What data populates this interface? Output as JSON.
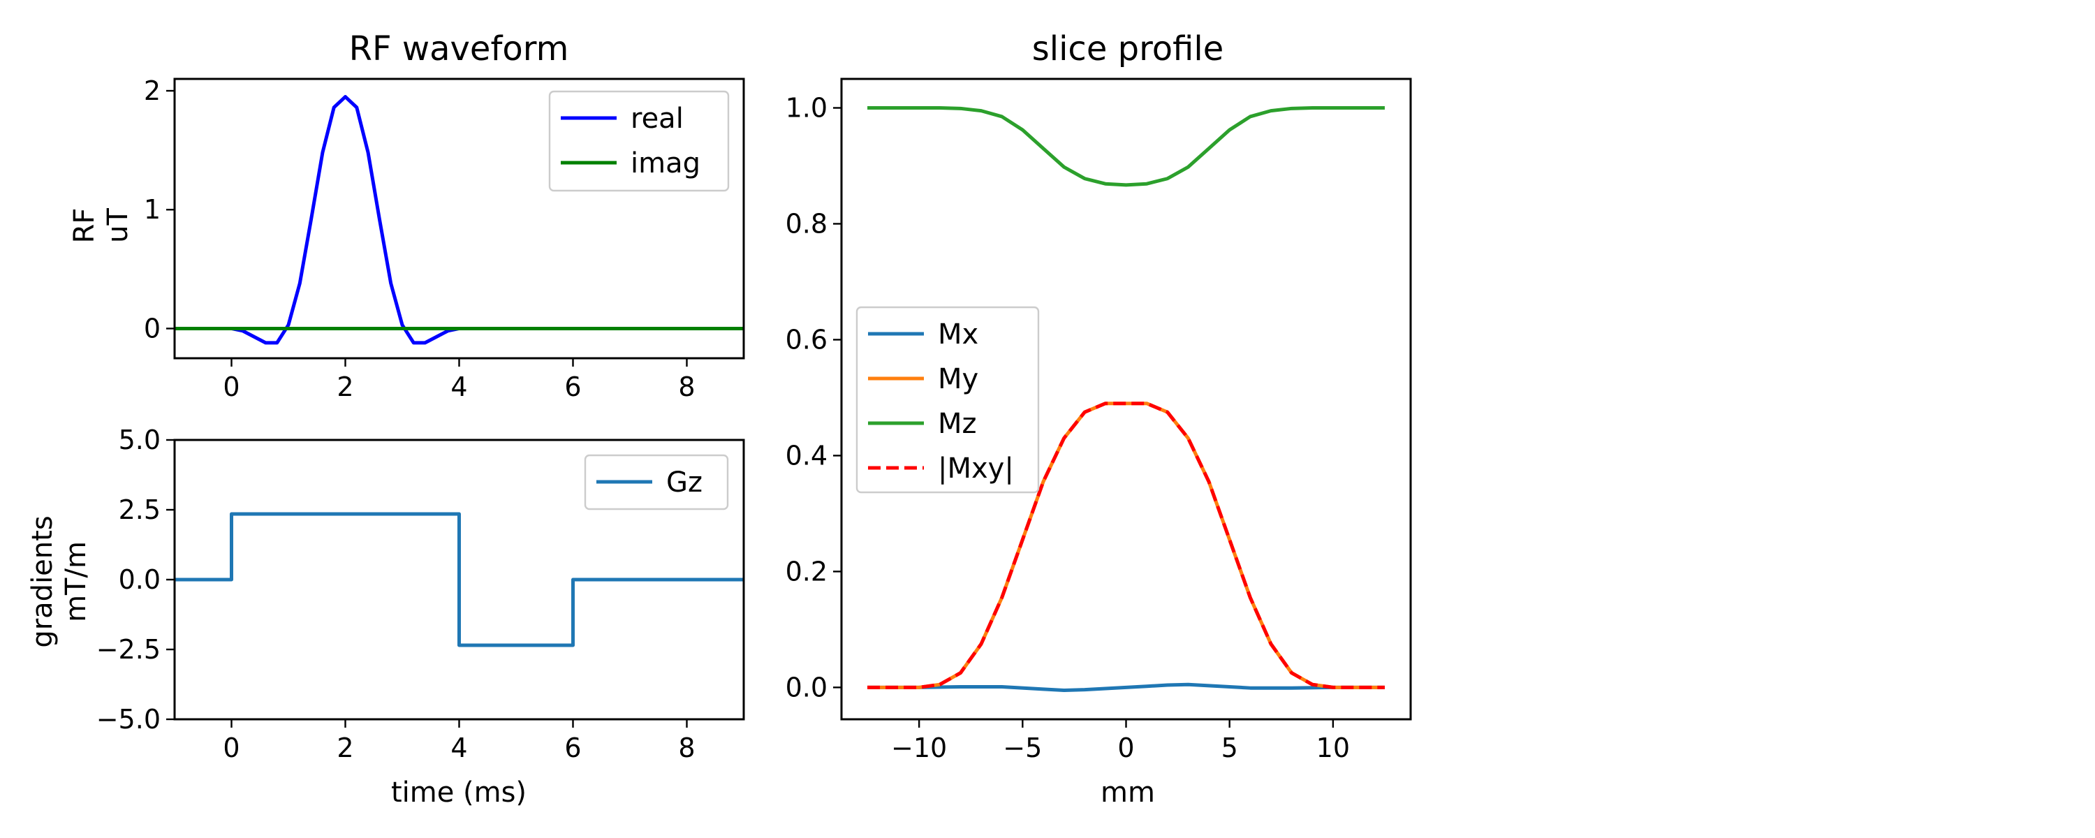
{
  "chart_data": [
    {
      "id": "rf",
      "type": "line",
      "title": "RF waveform",
      "xlabel": "",
      "ylabel": [
        "RF",
        "uT"
      ],
      "xlim": [
        -1,
        9
      ],
      "ylim": [
        -0.25,
        2.1
      ],
      "xticks": [
        0,
        2,
        4,
        6,
        8
      ],
      "xtick_labels": [
        "0",
        "2",
        "4",
        "6",
        "8"
      ],
      "yticks": [
        0,
        1,
        2
      ],
      "ytick_labels": [
        "0",
        "1",
        "2"
      ],
      "legend_position": "top-right",
      "series": [
        {
          "name": "real",
          "color": "#0000ff",
          "dash": "solid",
          "x": [
            -1,
            0,
            0.2,
            0.4,
            0.6,
            0.8,
            1.0,
            1.2,
            1.4,
            1.6,
            1.8,
            2.0,
            2.2,
            2.4,
            2.6,
            2.8,
            3.0,
            3.2,
            3.4,
            3.6,
            3.8,
            4.0,
            9
          ],
          "y": [
            0,
            0,
            -0.02,
            -0.07,
            -0.12,
            -0.12,
            0.03,
            0.38,
            0.92,
            1.48,
            1.86,
            1.95,
            1.86,
            1.48,
            0.92,
            0.38,
            0.03,
            -0.12,
            -0.12,
            -0.07,
            -0.02,
            0,
            0
          ]
        },
        {
          "name": "imag",
          "color": "#008000",
          "dash": "solid",
          "x": [
            -1,
            9
          ],
          "y": [
            0,
            0
          ]
        }
      ]
    },
    {
      "id": "grad",
      "type": "line",
      "title": "",
      "xlabel": "time (ms)",
      "ylabel": [
        "gradients",
        "mT/m"
      ],
      "xlim": [
        -1,
        9
      ],
      "ylim": [
        -5.0,
        5.0
      ],
      "xticks": [
        0,
        2,
        4,
        6,
        8
      ],
      "xtick_labels": [
        "0",
        "2",
        "4",
        "6",
        "8"
      ],
      "yticks": [
        -5.0,
        -2.5,
        0.0,
        2.5,
        5.0
      ],
      "ytick_labels": [
        "−5.0",
        "−2.5",
        "0.0",
        "2.5",
        "5.0"
      ],
      "legend_position": "top-right",
      "series": [
        {
          "name": "Gz",
          "color": "#1f77b4",
          "dash": "solid",
          "x": [
            -1,
            0,
            0,
            4,
            4,
            6,
            6,
            9
          ],
          "y": [
            0,
            0,
            2.35,
            2.35,
            -2.35,
            -2.35,
            0,
            0
          ]
        }
      ]
    },
    {
      "id": "slice",
      "type": "line",
      "title": "slice profile",
      "xlabel": "mm",
      "ylabel": [],
      "xlim": [
        -13.75,
        13.75
      ],
      "ylim": [
        -0.055,
        1.05
      ],
      "xticks": [
        -10,
        -5,
        0,
        5,
        10
      ],
      "xtick_labels": [
        "−10",
        "−5",
        "0",
        "5",
        "10"
      ],
      "yticks": [
        0.0,
        0.2,
        0.4,
        0.6,
        0.8,
        1.0
      ],
      "ytick_labels": [
        "0.0",
        "0.2",
        "0.4",
        "0.6",
        "0.8",
        "1.0"
      ],
      "legend_position": "center-left",
      "series": [
        {
          "name": "Mx",
          "color": "#1f77b4",
          "dash": "solid",
          "x": [
            -12.5,
            -10,
            -8,
            -6,
            -4,
            -3,
            -2,
            -1,
            0,
            1,
            2,
            3,
            4,
            6,
            8,
            10,
            12.5
          ],
          "y": [
            0,
            0,
            0.001,
            0.001,
            -0.003,
            -0.005,
            -0.004,
            -0.002,
            0,
            0.002,
            0.004,
            0.005,
            0.003,
            -0.001,
            -0.001,
            0,
            0
          ]
        },
        {
          "name": "My",
          "color": "#ff7f0e",
          "dash": "solid",
          "x": [
            -12.5,
            -10,
            -9,
            -8,
            -7,
            -6,
            -5,
            -4,
            -3,
            -2,
            -1,
            0,
            1,
            2,
            3,
            4,
            5,
            6,
            7,
            8,
            9,
            10,
            12.5
          ],
          "y": [
            0,
            0,
            0.005,
            0.025,
            0.075,
            0.155,
            0.255,
            0.355,
            0.43,
            0.475,
            0.49,
            0.49,
            0.49,
            0.475,
            0.43,
            0.355,
            0.255,
            0.155,
            0.075,
            0.025,
            0.005,
            0,
            0
          ]
        },
        {
          "name": "Mz",
          "color": "#2ca02c",
          "dash": "solid",
          "x": [
            -12.5,
            -9,
            -8,
            -7,
            -6,
            -5,
            -4,
            -3,
            -2,
            -1,
            0,
            1,
            2,
            3,
            4,
            5,
            6,
            7,
            8,
            9,
            12.5
          ],
          "y": [
            1.0,
            1.0,
            0.999,
            0.995,
            0.985,
            0.962,
            0.93,
            0.898,
            0.878,
            0.869,
            0.867,
            0.869,
            0.878,
            0.898,
            0.93,
            0.962,
            0.985,
            0.995,
            0.999,
            1.0,
            1.0
          ]
        },
        {
          "name": "|Mxy|",
          "color": "#ff0000",
          "dash": "dashed",
          "x": [
            -12.5,
            -10,
            -9,
            -8,
            -7,
            -6,
            -5,
            -4,
            -3,
            -2,
            -1,
            0,
            1,
            2,
            3,
            4,
            5,
            6,
            7,
            8,
            9,
            10,
            12.5
          ],
          "y": [
            0,
            0,
            0.005,
            0.025,
            0.075,
            0.155,
            0.255,
            0.355,
            0.43,
            0.475,
            0.49,
            0.49,
            0.49,
            0.475,
            0.43,
            0.355,
            0.255,
            0.155,
            0.075,
            0.025,
            0.005,
            0,
            0
          ]
        }
      ]
    }
  ]
}
